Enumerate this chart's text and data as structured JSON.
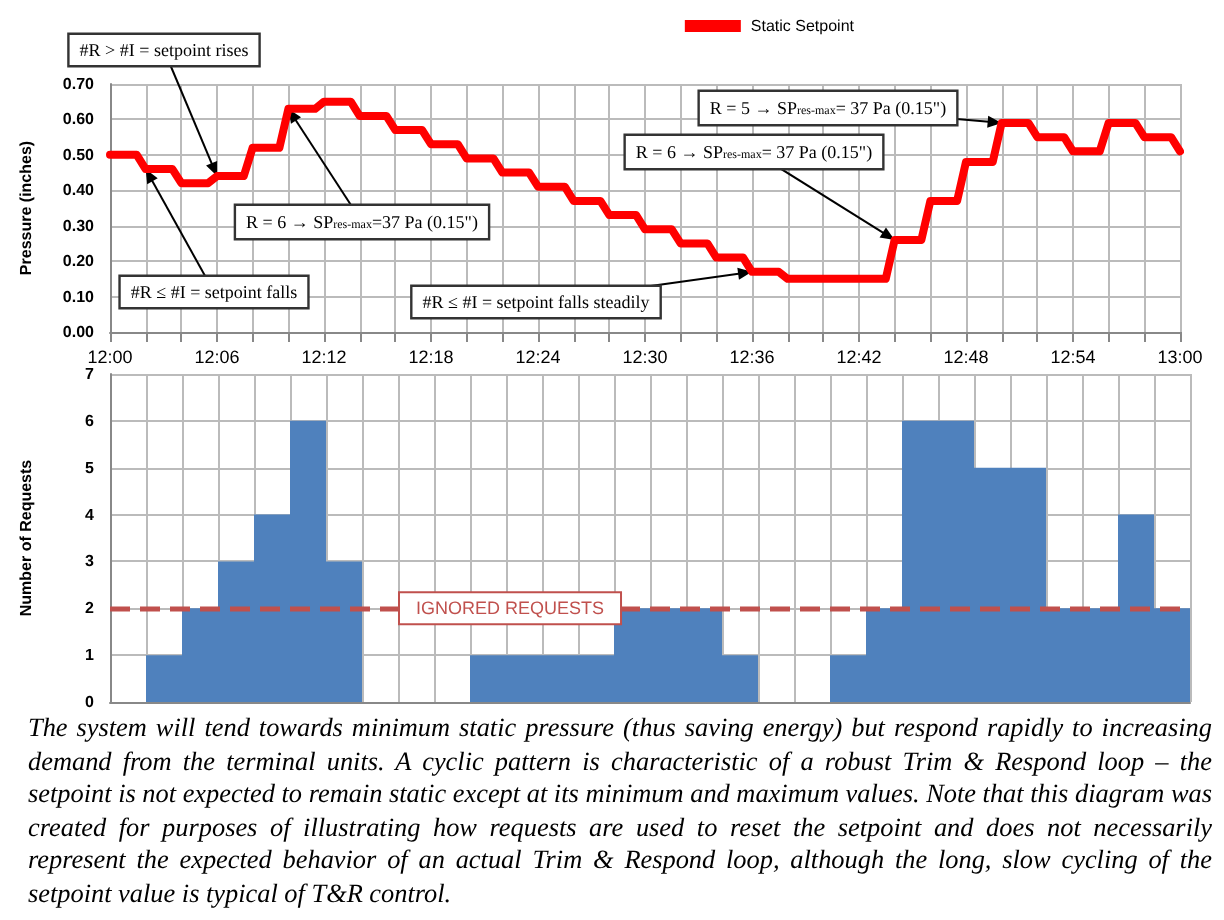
{
  "chart_data": [
    {
      "type": "line",
      "ylabel": "Pressure (inches)",
      "x": [
        12.0,
        12.025,
        12.0333,
        12.0583,
        12.0667,
        12.0917,
        12.1,
        12.125,
        12.1333,
        12.1583,
        12.1667,
        12.1917,
        12.2,
        12.225,
        12.2333,
        12.2583,
        12.2667,
        12.2917,
        12.3,
        12.325,
        12.3333,
        12.3583,
        12.3667,
        12.3917,
        12.4,
        12.425,
        12.4333,
        12.4583,
        12.4667,
        12.4917,
        12.5,
        12.525,
        12.5333,
        12.5583,
        12.5667,
        12.5917,
        12.6,
        12.625,
        12.6333,
        12.6583,
        12.6667,
        12.6917,
        12.7,
        12.725,
        12.7333,
        12.7583,
        12.7667,
        12.7917,
        12.8,
        12.825,
        12.8333,
        12.8583,
        12.8667,
        12.8917,
        12.9,
        12.925,
        12.9333,
        12.9583,
        12.9667,
        12.9917,
        13.0
      ],
      "series": [
        {
          "name": "Static Setpoint",
          "color": "#ff0000",
          "values": [
            0.5,
            0.5,
            0.46,
            0.46,
            0.42,
            0.42,
            0.44,
            0.44,
            0.52,
            0.52,
            0.63,
            0.63,
            0.65,
            0.65,
            0.61,
            0.61,
            0.57,
            0.57,
            0.53,
            0.53,
            0.49,
            0.49,
            0.45,
            0.45,
            0.41,
            0.41,
            0.37,
            0.37,
            0.33,
            0.33,
            0.29,
            0.29,
            0.25,
            0.25,
            0.21,
            0.21,
            0.17,
            0.17,
            0.15,
            0.15,
            0.15,
            0.15,
            0.15,
            0.15,
            0.26,
            0.26,
            0.37,
            0.37,
            0.48,
            0.48,
            0.59,
            0.59,
            0.55,
            0.55,
            0.51,
            0.51,
            0.59,
            0.59,
            0.55,
            0.55,
            0.51
          ]
        }
      ],
      "xlim": [
        12.0,
        13.0
      ],
      "xticks": [
        {
          "value": 12.0,
          "label": "12:00"
        },
        {
          "value": 12.0333,
          "label": null
        },
        {
          "value": 12.0667,
          "label": null
        },
        {
          "value": 12.1,
          "label": "12:06"
        },
        {
          "value": 12.1333,
          "label": null
        },
        {
          "value": 12.1667,
          "label": null
        },
        {
          "value": 12.2,
          "label": "12:12"
        },
        {
          "value": 12.2333,
          "label": null
        },
        {
          "value": 12.2667,
          "label": null
        },
        {
          "value": 12.3,
          "label": "12:18"
        },
        {
          "value": 12.3333,
          "label": null
        },
        {
          "value": 12.3667,
          "label": null
        },
        {
          "value": 12.4,
          "label": "12:24"
        },
        {
          "value": 12.4333,
          "label": null
        },
        {
          "value": 12.4667,
          "label": null
        },
        {
          "value": 12.5,
          "label": "12:30"
        },
        {
          "value": 12.5333,
          "label": null
        },
        {
          "value": 12.5667,
          "label": null
        },
        {
          "value": 12.6,
          "label": "12:36"
        },
        {
          "value": 12.6333,
          "label": null
        },
        {
          "value": 12.6667,
          "label": null
        },
        {
          "value": 12.7,
          "label": "12:42"
        },
        {
          "value": 12.7333,
          "label": null
        },
        {
          "value": 12.7667,
          "label": null
        },
        {
          "value": 12.8,
          "label": "12:48"
        },
        {
          "value": 12.8333,
          "label": null
        },
        {
          "value": 12.8667,
          "label": null
        },
        {
          "value": 12.9,
          "label": "12:54"
        },
        {
          "value": 12.9333,
          "label": null
        },
        {
          "value": 12.9667,
          "label": null
        },
        {
          "value": 13.0,
          "label": "13:00"
        }
      ],
      "ylim": [
        0,
        0.7
      ],
      "yticks": [
        {
          "value": 0,
          "label": "0.00"
        },
        {
          "value": 0.1,
          "label": "0.10"
        },
        {
          "value": 0.2,
          "label": "0.20"
        },
        {
          "value": 0.3,
          "label": "0.30"
        },
        {
          "value": 0.4,
          "label": "0.40"
        },
        {
          "value": 0.5,
          "label": "0.50"
        },
        {
          "value": 0.6,
          "label": "0.60"
        },
        {
          "value": 0.7,
          "label": "0.70"
        }
      ],
      "grid": true,
      "legend": "top right",
      "marker": "none",
      "line_style": "solid",
      "annotations": [
        {
          "text": "#R > #I = setpoint rises",
          "x": 12.1,
          "y": 0.44
        },
        {
          "text": "#R ≤ #I = setpoint falls",
          "x": 12.0333,
          "y": 0.46
        },
        {
          "text": "R = 6 → SP$_{res-max}$=37 Pa (0.15\")",
          "x": 12.1667,
          "y": 0.63
        },
        {
          "text": "#R ≤ #I = setpoint falls steadily",
          "x": 12.6,
          "y": 0.17
        },
        {
          "text": "R = 6 → SP$_{res-max}$= 37 Pa (0.15\")",
          "x": 12.7333,
          "y": 0.26
        },
        {
          "text": "R = 5 → SP$_{res-max}$= 37 Pa (0.15\")",
          "x": 12.8333,
          "y": 0.59
        }
      ]
    },
    {
      "type": "bar",
      "ylabel": "Number of Requests",
      "categories": [
        null,
        null,
        null,
        null,
        null,
        null,
        null,
        null,
        null,
        null,
        null,
        null,
        null,
        null,
        null,
        null,
        null,
        null,
        null,
        null,
        null,
        null,
        null,
        null,
        null,
        null,
        null,
        null,
        null,
        null
      ],
      "values": [
        0,
        1,
        2,
        3,
        4,
        6,
        3,
        0,
        0,
        0,
        1,
        1,
        1,
        1,
        2,
        2,
        2,
        1,
        0,
        0,
        1,
        2,
        6,
        6,
        5,
        5,
        2,
        2,
        4,
        2
      ],
      "color": "#4f81bd",
      "ylim": [
        0,
        7
      ],
      "yticks": [
        0,
        1,
        2,
        3,
        4,
        5,
        6,
        7
      ],
      "grid": true,
      "tick_labels": "y",
      "ref_lines": [
        {
          "axis": "y",
          "value": 2,
          "label": "IGNORED REQUESTS",
          "color": "#c0504d",
          "line_style": "dashed"
        }
      ],
      "annotations": [
        "The system will tend towards minimum static pressure (thus saving energy) but respond rapidly to increasing demand from the terminal units. A cyclic pattern is characteristic of a robust Trim & Respond loop – the setpoint is not expected to remain static except at its minimum and maximum values.  Note that this diagram was created for purposes of illustrating how requests are used to reset the setpoint and does not necessarily represent the expected behavior of an actual Trim & Respond loop, although the long, slow cycling of the setpoint value is typical of T&R control."
      ]
    }
  ]
}
